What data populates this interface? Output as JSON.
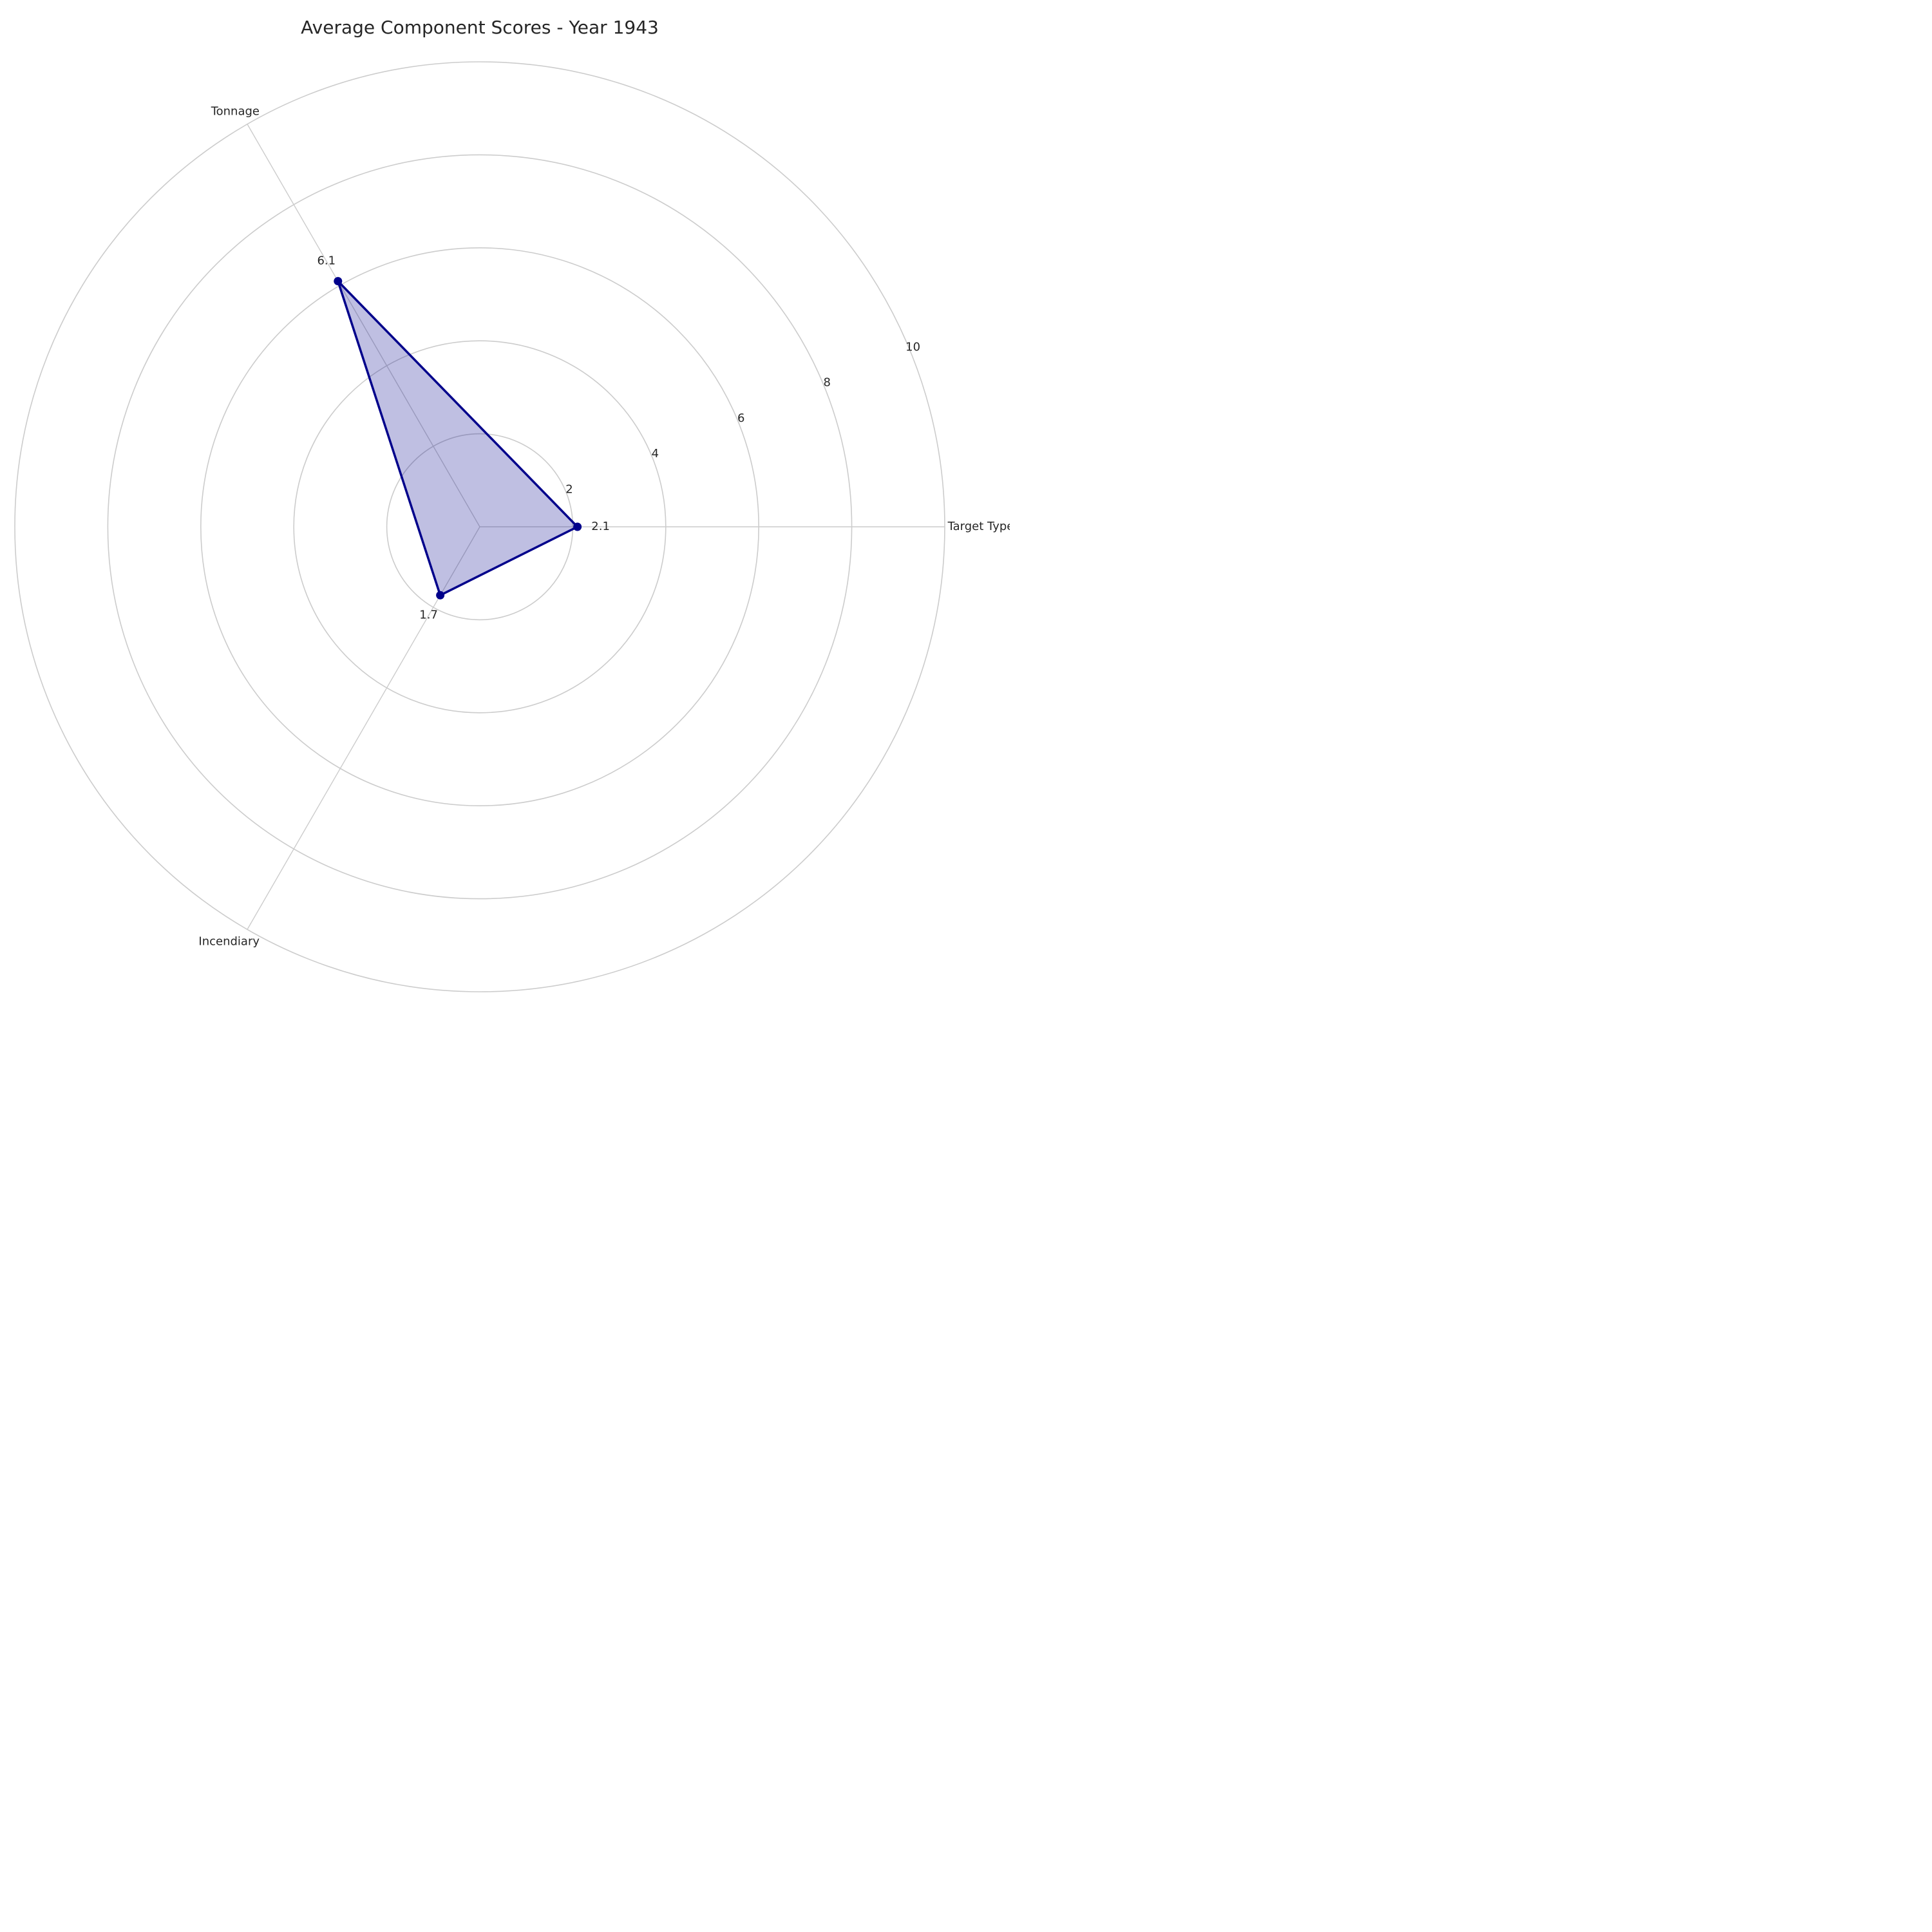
{
  "chart_data": {
    "type": "radar",
    "title": "Average Component Scores - Year 1943",
    "categories": [
      "Target Type",
      "Tonnage",
      "Incendiary"
    ],
    "values": [
      2.1,
      6.1,
      1.7
    ],
    "value_labels": [
      "2.1",
      "6.1",
      "1.7"
    ],
    "r_ticks": [
      2,
      4,
      6,
      8,
      10
    ],
    "rlim": [
      0,
      10
    ],
    "grid": true,
    "colors": {
      "line": "#00008b",
      "fill": "#00008b",
      "grid": "#cccccc",
      "text": "#262626"
    }
  }
}
